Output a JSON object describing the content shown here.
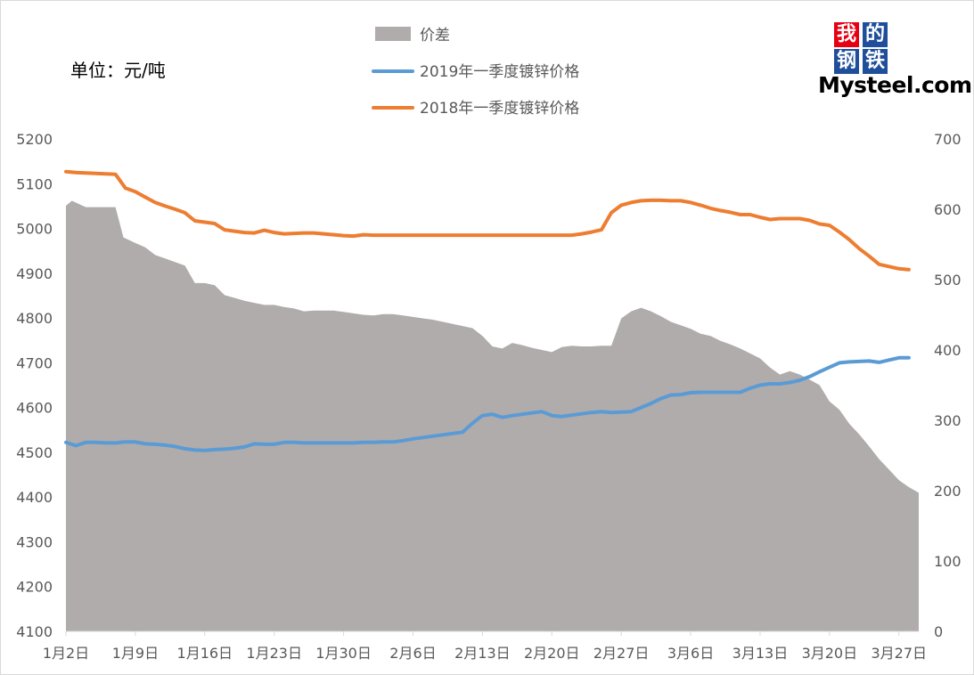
{
  "unit_label": "单位：元/吨",
  "logo": {
    "chars": [
      "我",
      "的",
      "钢",
      "铁"
    ],
    "word": "Mysteel.com"
  },
  "colors": {
    "spread": "#b0acab",
    "y2019": "#5b9bd5",
    "y2018": "#ed7d31",
    "axis": "#d9d9d9",
    "text": "#595959"
  },
  "chart_data": {
    "type": "line+area",
    "legend": [
      "价差",
      "2019年一季度镀锌价格",
      "2018年一季度镀锌价格"
    ],
    "legend_position": "top",
    "left_axis": {
      "ylim": [
        4100,
        5200
      ],
      "ticks": [
        4100,
        4200,
        4300,
        4400,
        4500,
        4600,
        4700,
        4800,
        4900,
        5000,
        5100,
        5200
      ]
    },
    "right_axis": {
      "ylim": [
        0,
        700
      ],
      "ticks": [
        0,
        100,
        200,
        300,
        400,
        500,
        600,
        700
      ]
    },
    "x_ticks": [
      "1月2日",
      "1月9日",
      "1月16日",
      "1月23日",
      "1月30日",
      "2月6日",
      "2月13日",
      "2月20日",
      "2月27日",
      "3月6日",
      "3月13日",
      "3月20日",
      "3月27日"
    ],
    "x_tick_days": [
      0,
      7,
      14,
      21,
      28,
      35,
      42,
      49,
      56,
      63,
      70,
      77,
      84
    ],
    "series": [
      {
        "name": "价差",
        "type": "area",
        "axis": "right",
        "points": [
          [
            0,
            605
          ],
          [
            0.6,
            612
          ],
          [
            2,
            603
          ],
          [
            3,
            603
          ],
          [
            5,
            603
          ],
          [
            5.8,
            560
          ],
          [
            7,
            552
          ],
          [
            8,
            546
          ],
          [
            9,
            535
          ],
          [
            10,
            530
          ],
          [
            11,
            525
          ],
          [
            12,
            520
          ],
          [
            13,
            495
          ],
          [
            14,
            495
          ],
          [
            15,
            492
          ],
          [
            16,
            478
          ],
          [
            17,
            474
          ],
          [
            18,
            470
          ],
          [
            19,
            467
          ],
          [
            20,
            464
          ],
          [
            21,
            464
          ],
          [
            22,
            461
          ],
          [
            23,
            459
          ],
          [
            24,
            455
          ],
          [
            25,
            456
          ],
          [
            26,
            456
          ],
          [
            27,
            456
          ],
          [
            28,
            454
          ],
          [
            29,
            452
          ],
          [
            30,
            450
          ],
          [
            31,
            449
          ],
          [
            32,
            451
          ],
          [
            33,
            451
          ],
          [
            34,
            449
          ],
          [
            35,
            447
          ],
          [
            36,
            445
          ],
          [
            37,
            443
          ],
          [
            38,
            440
          ],
          [
            39,
            437
          ],
          [
            40,
            434
          ],
          [
            41,
            431
          ],
          [
            42,
            420
          ],
          [
            43,
            405
          ],
          [
            44,
            402
          ],
          [
            45,
            410
          ],
          [
            46,
            407
          ],
          [
            47,
            403
          ],
          [
            48,
            400
          ],
          [
            49,
            397
          ],
          [
            50,
            404
          ],
          [
            51,
            406
          ],
          [
            52,
            405
          ],
          [
            53,
            405
          ],
          [
            54,
            406
          ],
          [
            55,
            406
          ],
          [
            56,
            445
          ],
          [
            57,
            455
          ],
          [
            58,
            460
          ],
          [
            59,
            455
          ],
          [
            60,
            448
          ],
          [
            61,
            440
          ],
          [
            62,
            435
          ],
          [
            63,
            430
          ],
          [
            64,
            423
          ],
          [
            65,
            420
          ],
          [
            66,
            413
          ],
          [
            67,
            408
          ],
          [
            68,
            402
          ],
          [
            69,
            395
          ],
          [
            70,
            388
          ],
          [
            71,
            375
          ],
          [
            72,
            365
          ],
          [
            73,
            370
          ],
          [
            74,
            365
          ],
          [
            75,
            358
          ],
          [
            76,
            350
          ],
          [
            77,
            327
          ],
          [
            78,
            315
          ],
          [
            79,
            295
          ],
          [
            80,
            280
          ],
          [
            81,
            263
          ],
          [
            82,
            245
          ],
          [
            83,
            230
          ],
          [
            84,
            215
          ],
          [
            85,
            205
          ],
          [
            86,
            197
          ]
        ]
      },
      {
        "name": "2019年一季度镀锌价格",
        "type": "line",
        "axis": "left",
        "points": [
          [
            0,
            4522
          ],
          [
            1,
            4515
          ],
          [
            2,
            4522
          ],
          [
            3,
            4522
          ],
          [
            4,
            4521
          ],
          [
            5,
            4521
          ],
          [
            6,
            4523
          ],
          [
            7,
            4523
          ],
          [
            8,
            4519
          ],
          [
            9,
            4518
          ],
          [
            10,
            4516
          ],
          [
            11,
            4513
          ],
          [
            12,
            4508
          ],
          [
            13,
            4505
          ],
          [
            14,
            4504
          ],
          [
            15,
            4506
          ],
          [
            16,
            4507
          ],
          [
            17,
            4509
          ],
          [
            18,
            4512
          ],
          [
            19,
            4519
          ],
          [
            20,
            4518
          ],
          [
            21,
            4518
          ],
          [
            22,
            4522
          ],
          [
            23,
            4522
          ],
          [
            24,
            4521
          ],
          [
            25,
            4521
          ],
          [
            26,
            4521
          ],
          [
            27,
            4521
          ],
          [
            28,
            4521
          ],
          [
            29,
            4521
          ],
          [
            30,
            4522
          ],
          [
            31,
            4522
          ],
          [
            32,
            4523
          ],
          [
            33,
            4523
          ],
          [
            34,
            4526
          ],
          [
            35,
            4530
          ],
          [
            36,
            4533
          ],
          [
            37,
            4536
          ],
          [
            38,
            4539
          ],
          [
            39,
            4542
          ],
          [
            40,
            4545
          ],
          [
            41,
            4565
          ],
          [
            42,
            4582
          ],
          [
            43,
            4585
          ],
          [
            44,
            4578
          ],
          [
            45,
            4582
          ],
          [
            46,
            4585
          ],
          [
            47,
            4588
          ],
          [
            48,
            4591
          ],
          [
            49,
            4582
          ],
          [
            50,
            4580
          ],
          [
            51,
            4583
          ],
          [
            52,
            4586
          ],
          [
            53,
            4589
          ],
          [
            54,
            4591
          ],
          [
            55,
            4589
          ],
          [
            56,
            4590
          ],
          [
            57,
            4591
          ],
          [
            58,
            4600
          ],
          [
            59,
            4609
          ],
          [
            60,
            4620
          ],
          [
            61,
            4628
          ],
          [
            62,
            4629
          ],
          [
            63,
            4633
          ],
          [
            64,
            4634
          ],
          [
            65,
            4634
          ],
          [
            66,
            4634
          ],
          [
            67,
            4634
          ],
          [
            68,
            4634
          ],
          [
            69,
            4643
          ],
          [
            70,
            4650
          ],
          [
            71,
            4653
          ],
          [
            72,
            4653
          ],
          [
            73,
            4656
          ],
          [
            74,
            4661
          ],
          [
            75,
            4669
          ],
          [
            76,
            4680
          ],
          [
            77,
            4690
          ],
          [
            78,
            4700
          ],
          [
            79,
            4702
          ],
          [
            80,
            4703
          ],
          [
            81,
            4704
          ],
          [
            82,
            4701
          ],
          [
            83,
            4706
          ],
          [
            84,
            4711
          ],
          [
            85,
            4711
          ]
        ]
      },
      {
        "name": "2018年一季度镀锌价格",
        "type": "line",
        "axis": "left",
        "points": [
          [
            0,
            5127
          ],
          [
            1,
            5125
          ],
          [
            2,
            5124
          ],
          [
            3,
            5123
          ],
          [
            4,
            5122
          ],
          [
            5,
            5121
          ],
          [
            6,
            5090
          ],
          [
            7,
            5082
          ],
          [
            8,
            5070
          ],
          [
            9,
            5058
          ],
          [
            10,
            5050
          ],
          [
            11,
            5043
          ],
          [
            12,
            5035
          ],
          [
            13,
            5017
          ],
          [
            14,
            5014
          ],
          [
            15,
            5011
          ],
          [
            16,
            4997
          ],
          [
            17,
            4994
          ],
          [
            18,
            4991
          ],
          [
            19,
            4990
          ],
          [
            20,
            4996
          ],
          [
            21,
            4991
          ],
          [
            22,
            4988
          ],
          [
            23,
            4989
          ],
          [
            24,
            4990
          ],
          [
            25,
            4990
          ],
          [
            26,
            4988
          ],
          [
            27,
            4986
          ],
          [
            28,
            4984
          ],
          [
            29,
            4983
          ],
          [
            30,
            4986
          ],
          [
            31,
            4985
          ],
          [
            32,
            4985
          ],
          [
            33,
            4985
          ],
          [
            34,
            4985
          ],
          [
            35,
            4985
          ],
          [
            36,
            4985
          ],
          [
            37,
            4985
          ],
          [
            38,
            4985
          ],
          [
            39,
            4985
          ],
          [
            40,
            4985
          ],
          [
            41,
            4985
          ],
          [
            42,
            4985
          ],
          [
            43,
            4985
          ],
          [
            44,
            4985
          ],
          [
            45,
            4985
          ],
          [
            46,
            4985
          ],
          [
            47,
            4985
          ],
          [
            48,
            4985
          ],
          [
            49,
            4985
          ],
          [
            50,
            4985
          ],
          [
            51,
            4985
          ],
          [
            52,
            4988
          ],
          [
            53,
            4992
          ],
          [
            54,
            4997
          ],
          [
            55,
            5035
          ],
          [
            56,
            5052
          ],
          [
            57,
            5058
          ],
          [
            58,
            5062
          ],
          [
            59,
            5063
          ],
          [
            60,
            5063
          ],
          [
            61,
            5062
          ],
          [
            62,
            5062
          ],
          [
            63,
            5058
          ],
          [
            64,
            5052
          ],
          [
            65,
            5045
          ],
          [
            66,
            5040
          ],
          [
            67,
            5036
          ],
          [
            68,
            5031
          ],
          [
            69,
            5031
          ],
          [
            70,
            5025
          ],
          [
            71,
            5020
          ],
          [
            72,
            5022
          ],
          [
            73,
            5022
          ],
          [
            74,
            5022
          ],
          [
            75,
            5018
          ],
          [
            76,
            5010
          ],
          [
            77,
            5007
          ],
          [
            78,
            4992
          ],
          [
            79,
            4975
          ],
          [
            80,
            4955
          ],
          [
            81,
            4938
          ],
          [
            82,
            4920
          ],
          [
            83,
            4915
          ],
          [
            84,
            4910
          ],
          [
            85,
            4908
          ]
        ]
      }
    ]
  }
}
